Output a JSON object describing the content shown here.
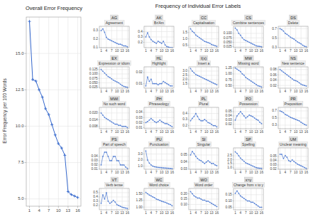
{
  "chart_data": [
    {
      "type": "line",
      "title": "Overall Error Frequency",
      "ylabel": "Error Frequency per 100 Words",
      "x": [
        1,
        2,
        3,
        4,
        5,
        6,
        7,
        8,
        9,
        10,
        11,
        12,
        13,
        14,
        15,
        16
      ],
      "values": [
        17.2,
        13.2,
        13.1,
        12.5,
        12.0,
        11.2,
        10.8,
        10.1,
        9.4,
        8.8,
        8.5,
        8.0,
        5.5,
        5.3,
        5.2,
        5.1
      ],
      "xlim": [
        0,
        17
      ],
      "xticks": [
        1,
        4,
        7,
        10,
        13,
        16
      ],
      "ylim": [
        4.5,
        17.5
      ],
      "yticks": [
        {
          "value": 5.0,
          "label": "5.0"
        },
        7.5,
        {
          "value": 10.0,
          "label": "10.0"
        },
        12.5,
        {
          "value": 15.0,
          "label": "15.0"
        }
      ],
      "grid": true,
      "marker": "plus",
      "color": "#3366cc"
    },
    {
      "type": "line",
      "title": "Frequency of Individual Error Labels",
      "x": [
        1,
        2,
        3,
        4,
        5,
        6,
        7,
        8,
        9,
        10,
        11,
        12,
        13,
        14,
        15,
        16
      ],
      "xlim": [
        0,
        17
      ],
      "xticks": [
        1,
        4,
        7,
        10,
        13,
        16
      ],
      "grid": true,
      "marker": "plus",
      "color": "#3366cc",
      "panels": [
        {
          "title": "AG",
          "subtitle": "Agreement",
          "values": [
            0.3,
            0.32,
            0.28,
            0.22,
            0.2,
            0.19,
            0.18,
            0.17,
            0.16,
            0.15,
            0.14,
            0.14,
            0.13,
            0.12,
            0.12,
            0.11
          ],
          "ylim": [
            0.1,
            0.35
          ],
          "yticks": [
            0.1,
            0.2,
            0.3
          ]
        },
        {
          "title": "AK",
          "subtitle": "Br/Am",
          "values": [
            0.3,
            0.38,
            0.3,
            0.25,
            0.22,
            0.2,
            0.18,
            0.22,
            0.2,
            0.18,
            0.22,
            0.15,
            0.12,
            0.11,
            0.1,
            0.1
          ],
          "ylim": [
            0.1,
            0.5
          ],
          "yticks": [
            0.2,
            0.3,
            0.4
          ]
        },
        {
          "title": "CC",
          "subtitle": "Capitalisation",
          "values": [
            1.8,
            1.6,
            1.5,
            1.3,
            1.2,
            1.1,
            1.0,
            0.9,
            0.8,
            0.75,
            0.7,
            0.65,
            0.55,
            0.5,
            0.45,
            0.4
          ],
          "ylim": [
            0.3,
            2.0
          ],
          "yticks": [
            0.5,
            {
              "value": 1.0,
              "label": "1.0"
            },
            1.5
          ]
        },
        {
          "title": "CS",
          "subtitle": "Combine sentences",
          "values": [
            0.13,
            0.12,
            0.1,
            0.09,
            0.075,
            0.065,
            0.06,
            0.055,
            0.05,
            0.045,
            0.04,
            0.035,
            0.03,
            0.028,
            0.027,
            0.025
          ],
          "ylim": [
            0.02,
            0.14
          ],
          "yticks": [
            0.025,
            {
              "value": 0.05,
              "label": "0.050"
            },
            0.075,
            {
              "value": 0.1,
              "label": "0.100"
            }
          ]
        },
        {
          "title": "DS",
          "subtitle": "Delete",
          "values": [
            0.7,
            0.68,
            0.65,
            0.6,
            0.58,
            0.55,
            0.52,
            0.5,
            0.48,
            0.45,
            0.42,
            0.4,
            0.38,
            0.35,
            0.33,
            0.32
          ],
          "ylim": [
            0.3,
            0.75
          ],
          "yticks": [
            0.3,
            0.5,
            0.7
          ]
        },
        {
          "title": "EX",
          "subtitle": "Expression or idiom",
          "values": [
            0.125,
            0.115,
            0.105,
            0.095,
            0.085,
            0.08,
            0.072,
            0.065,
            0.06,
            0.055,
            0.05,
            0.042,
            0.035,
            0.03,
            0.027,
            0.025
          ],
          "ylim": [
            0.02,
            0.14
          ],
          "yticks": [
            0.025,
            {
              "value": 0.05,
              "label": "0.050"
            },
            0.075,
            {
              "value": 0.1,
              "label": "0.100"
            },
            0.125
          ]
        },
        {
          "title": "HL",
          "subtitle": "Highlight",
          "values": [
            0.008,
            0.016,
            0.012,
            0.014,
            0.01,
            0.01,
            0.01,
            0.009,
            0.01,
            0.01,
            0.012,
            0.011,
            0.01,
            0.009,
            0.008,
            0.008
          ],
          "ylim": [
            0.006,
            0.025
          ],
          "yticks": [
            0.01,
            0.02
          ]
        },
        {
          "title": "I(x)",
          "subtitle": "Insert a",
          "values": [
            3.3,
            3.0,
            2.8,
            2.6,
            2.5,
            2.4,
            2.3,
            2.2,
            2.1,
            2.0,
            1.9,
            1.8,
            1.7,
            1.6,
            1.5,
            1.4
          ],
          "ylim": [
            1.0,
            3.5
          ],
          "yticks": [
            1.5,
            {
              "value": 2.0,
              "label": "2.0"
            },
            2.5,
            {
              "value": 3.0,
              "label": "3.0"
            }
          ]
        },
        {
          "title": "MW",
          "subtitle": "Missing word",
          "values": [
            1.25,
            1.2,
            1.15,
            1.1,
            1.0,
            0.95,
            0.85,
            0.8,
            0.75,
            0.7,
            0.65,
            0.6,
            0.55,
            0.5,
            0.48,
            0.45
          ],
          "ylim": [
            0.4,
            1.3
          ],
          "yticks": [
            {
              "value": 0.5,
              "label": "0.50"
            },
            0.75,
            {
              "value": 1.0,
              "label": "1.00"
            },
            1.25
          ]
        },
        {
          "title": "NS",
          "subtitle": "New sentence",
          "values": [
            0.08,
            0.075,
            0.07,
            0.065,
            0.06,
            0.055,
            0.05,
            0.045,
            0.04,
            0.038,
            0.035,
            0.03,
            0.025,
            0.022,
            0.02,
            0.018
          ],
          "ylim": [
            0.01,
            0.09
          ],
          "yticks": [
            0.02,
            0.04,
            0.06,
            0.08
          ]
        },
        {
          "title": "MWI",
          "subtitle": "No such word",
          "values": [
            0.02,
            0.018,
            0.016,
            0.015,
            0.014,
            0.013,
            0.012,
            0.011,
            0.01,
            0.01,
            0.009,
            0.009,
            0.008,
            0.008,
            0.008,
            0.007
          ],
          "ylim": [
            0.006,
            0.025
          ],
          "yticks": [
            0.008,
            0.014,
            {
              "value": 0.02,
              "label": "0.020"
            }
          ]
        },
        {
          "title": "PH",
          "subtitle": "Phraseology",
          "values": [
            0.02,
            0.022,
            0.025,
            0.028,
            0.025,
            0.022,
            0.02,
            0.022,
            0.025,
            0.022,
            0.02,
            0.018,
            0.018,
            0.016,
            0.014,
            0.012
          ],
          "ylim": [
            0.008,
            0.05
          ],
          "yticks": [
            0.01,
            0.02,
            0.03,
            0.04
          ]
        },
        {
          "title": "PL",
          "subtitle": "Plural",
          "values": [
            0.28,
            0.32,
            0.35,
            0.4,
            0.35,
            0.3,
            0.28,
            0.28,
            0.3,
            0.28,
            0.25,
            0.24,
            0.22,
            0.2,
            0.2,
            0.18
          ],
          "ylim": [
            0.15,
            0.5
          ],
          "yticks": [
            0.2,
            0.3,
            0.4
          ]
        },
        {
          "title": "PO",
          "subtitle": "Possession",
          "values": [
            0.03,
            0.04,
            0.045,
            0.05,
            0.045,
            0.04,
            0.035,
            0.038,
            0.042,
            0.04,
            0.038,
            0.035,
            0.032,
            0.03,
            0.025,
            0.022
          ],
          "ylim": [
            0.01,
            0.06
          ],
          "yticks": [
            0.02,
            0.03,
            0.04,
            0.05
          ]
        },
        {
          "title": "PR",
          "subtitle": "Preposition",
          "values": [
            0.7,
            0.68,
            0.65,
            0.6,
            0.58,
            0.55,
            0.52,
            0.5,
            0.48,
            0.46,
            0.44,
            0.42,
            0.38,
            0.35,
            0.32,
            0.3
          ],
          "ylim": [
            0.2,
            0.8
          ],
          "yticks": [
            0.3,
            0.5,
            0.7
          ]
        },
        {
          "title": "PS",
          "subtitle": "Part of speech",
          "values": [
            0.02,
            0.04,
            0.05,
            0.05,
            0.04,
            0.03,
            0.03,
            0.04,
            0.04,
            0.03,
            0.03,
            0.02,
            0.02,
            0.02,
            0.015,
            0.012
          ],
          "ylim": [
            0.01,
            0.06
          ],
          "yticks": [
            0.01,
            0.02,
            0.03,
            0.04
          ]
        },
        {
          "title": "PU",
          "subtitle": "Punctuation",
          "values": [
            3.5,
            2.0,
            1.5,
            1.2,
            1.0,
            0.9,
            0.85,
            0.8,
            0.78,
            0.75,
            0.72,
            0.7,
            0.68,
            0.65,
            0.62,
            0.6
          ],
          "ylim": [
            0.5,
            4.0
          ],
          "yticks": [
            {
              "value": 1.0,
              "label": "1.0"
            },
            {
              "value": 2.0,
              "label": "2.0"
            },
            {
              "value": 3.0,
              "label": "3.0"
            }
          ]
        },
        {
          "title": "SI",
          "subtitle": "Singular",
          "values": [
            0.05,
            0.055,
            0.052,
            0.048,
            0.045,
            0.043,
            0.042,
            0.04,
            0.038,
            0.04,
            0.042,
            0.04,
            0.038,
            0.038,
            0.036,
            0.035
          ],
          "ylim": [
            0.03,
            0.06
          ],
          "yticks": [
            0.03,
            0.04,
            0.05
          ]
        },
        {
          "title": "SP",
          "subtitle": "Spelling",
          "values": [
            3.0,
            2.8,
            2.5,
            2.2,
            2.0,
            1.8,
            1.6,
            1.5,
            1.4,
            1.3,
            1.2,
            1.1,
            1.0,
            0.95,
            0.92,
            0.9
          ],
          "ylim": [
            0.8,
            3.5
          ],
          "yticks": [
            {
              "value": 1.0,
              "label": "1.0"
            },
            1.5,
            {
              "value": 2.0,
              "label": "2.0"
            },
            2.5
          ]
        },
        {
          "title": "UM",
          "subtitle": "Unclear meaning",
          "values": [
            0.055,
            0.055,
            0.045,
            0.052,
            0.048,
            0.04,
            0.038,
            0.042,
            0.038,
            0.035,
            0.032,
            0.03,
            0.028,
            0.026,
            0.024,
            0.022
          ],
          "ylim": [
            0.02,
            0.07
          ],
          "yticks": [
            0.02,
            0.03,
            0.04,
            0.05
          ]
        },
        {
          "title": "VT",
          "subtitle": "Verb tense",
          "values": [
            0.25,
            0.45,
            0.35,
            0.5,
            0.3,
            0.25,
            0.28,
            0.32,
            0.28,
            0.22,
            0.2,
            0.18,
            0.16,
            0.15,
            0.14,
            0.13
          ],
          "ylim": [
            0.1,
            0.6
          ],
          "yticks": [
            0.2,
            0.3,
            0.4,
            0.5
          ]
        },
        {
          "title": "WC",
          "subtitle": "Word choice",
          "values": [
            1.55,
            1.5,
            1.45,
            1.42,
            1.38,
            1.35,
            1.3,
            1.28,
            1.25,
            1.22,
            1.2,
            1.18,
            1.15,
            1.12,
            1.1,
            1.05
          ],
          "ylim": [
            0.9,
            1.7
          ],
          "yticks": [
            {
              "value": 1.0,
              "label": "1.00"
            },
            1.25,
            {
              "value": 1.5,
              "label": "1.50"
            }
          ]
        },
        {
          "title": "WO",
          "subtitle": "Word order",
          "values": [
            0.22,
            0.2,
            0.18,
            0.17,
            0.16,
            0.16,
            0.15,
            0.14,
            0.14,
            0.13,
            0.13,
            0.12,
            0.11,
            0.1,
            0.09,
            0.08
          ],
          "ylim": [
            0.05,
            0.25
          ],
          "yticks": [
            {
              "value": 0.1,
              "label": "0.10"
            },
            0.15,
            {
              "value": 0.2,
              "label": "0.20"
            }
          ]
        },
        {
          "title": "x>y",
          "subtitle": "Change from x to y",
          "values": [
            0.16,
            0.18,
            0.16,
            0.14,
            0.13,
            0.12,
            0.11,
            0.1,
            0.1,
            0.09,
            0.09,
            0.08,
            0.07,
            0.06,
            0.05,
            0.05
          ],
          "ylim": [
            0.03,
            0.2
          ],
          "yticks": [
            0.05,
            {
              "value": 0.1,
              "label": "0.10"
            },
            0.15
          ]
        }
      ]
    }
  ]
}
